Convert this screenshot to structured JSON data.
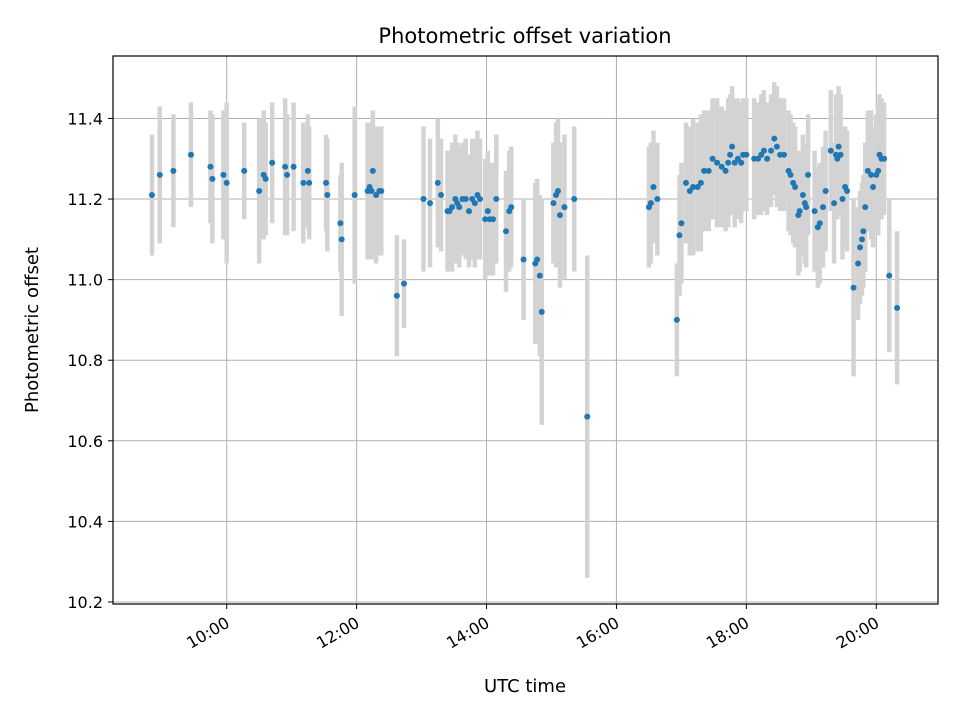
{
  "chart_data": {
    "type": "scatter",
    "title": "Photometric offset variation",
    "xlabel": "UTC time",
    "ylabel": "Photometric offset",
    "x_unit": "hours UTC",
    "xlim": [
      8.25,
      20.95
    ],
    "ylim": [
      10.195,
      11.555
    ],
    "xticks": [
      {
        "value": 10,
        "label": "10:00"
      },
      {
        "value": 12,
        "label": "12:00"
      },
      {
        "value": 14,
        "label": "14:00"
      },
      {
        "value": 16,
        "label": "16:00"
      },
      {
        "value": 18,
        "label": "18:00"
      },
      {
        "value": 20,
        "label": "20:00"
      }
    ],
    "yticks": [
      {
        "value": 10.2,
        "label": "10.2"
      },
      {
        "value": 10.4,
        "label": "10.4"
      },
      {
        "value": 10.6,
        "label": "10.6"
      },
      {
        "value": 10.8,
        "label": "10.8"
      },
      {
        "value": 11.0,
        "label": "11.0"
      },
      {
        "value": 11.2,
        "label": "11.2"
      },
      {
        "value": 11.4,
        "label": "11.4"
      }
    ],
    "grid": true,
    "colors": {
      "marker": "#1f77b4",
      "errorbar": "#d3d3d3",
      "grid": "#b0b0b0"
    },
    "series": [
      {
        "values": [
          [
            8.85,
            11.21,
            0.15
          ],
          [
            8.97,
            11.26,
            0.17
          ],
          [
            9.18,
            11.27,
            0.14
          ],
          [
            9.45,
            11.31,
            0.13
          ],
          [
            9.75,
            11.28,
            0.14
          ],
          [
            9.78,
            11.25,
            0.16
          ],
          [
            9.95,
            11.26,
            0.16
          ],
          [
            10.0,
            11.24,
            0.2
          ],
          [
            10.27,
            11.27,
            0.12
          ],
          [
            10.5,
            11.22,
            0.18
          ],
          [
            10.57,
            11.26,
            0.16
          ],
          [
            10.6,
            11.25,
            0.14
          ],
          [
            10.7,
            11.29,
            0.15
          ],
          [
            10.9,
            11.28,
            0.17
          ],
          [
            10.93,
            11.26,
            0.15
          ],
          [
            11.03,
            11.28,
            0.16
          ],
          [
            11.18,
            11.24,
            0.15
          ],
          [
            11.25,
            11.27,
            0.14
          ],
          [
            11.27,
            11.24,
            0.14
          ],
          [
            11.53,
            11.24,
            0.12
          ],
          [
            11.55,
            11.21,
            0.14
          ],
          [
            11.75,
            11.14,
            0.12
          ],
          [
            11.77,
            11.1,
            0.19
          ],
          [
            11.97,
            11.21,
            0.22
          ],
          [
            12.17,
            11.22,
            0.17
          ],
          [
            12.2,
            11.23,
            0.15
          ],
          [
            12.23,
            11.22,
            0.17
          ],
          [
            12.25,
            11.27,
            0.15
          ],
          [
            12.3,
            11.21,
            0.17
          ],
          [
            12.35,
            11.22,
            0.16
          ],
          [
            12.38,
            11.22,
            0.16
          ],
          [
            12.62,
            10.96,
            0.15
          ],
          [
            12.73,
            10.99,
            0.11
          ],
          [
            13.03,
            11.2,
            0.18
          ],
          [
            13.13,
            11.19,
            0.16
          ],
          [
            13.25,
            11.24,
            0.16
          ],
          [
            13.3,
            11.21,
            0.14
          ],
          [
            13.4,
            11.17,
            0.15
          ],
          [
            13.43,
            11.17,
            0.15
          ],
          [
            13.47,
            11.18,
            0.16
          ],
          [
            13.52,
            11.2,
            0.16
          ],
          [
            13.55,
            11.19,
            0.15
          ],
          [
            13.58,
            11.18,
            0.15
          ],
          [
            13.63,
            11.2,
            0.14
          ],
          [
            13.68,
            11.2,
            0.15
          ],
          [
            13.73,
            11.17,
            0.14
          ],
          [
            13.78,
            11.2,
            0.15
          ],
          [
            13.82,
            11.19,
            0.16
          ],
          [
            13.86,
            11.21,
            0.16
          ],
          [
            13.9,
            11.2,
            0.15
          ],
          [
            13.98,
            11.15,
            0.15
          ],
          [
            14.02,
            11.17,
            0.15
          ],
          [
            14.05,
            11.15,
            0.14
          ],
          [
            14.1,
            11.15,
            0.14
          ],
          [
            14.15,
            11.2,
            0.16
          ],
          [
            14.3,
            11.12,
            0.15
          ],
          [
            14.35,
            11.17,
            0.15
          ],
          [
            14.38,
            11.18,
            0.15
          ],
          [
            14.57,
            11.05,
            0.15
          ],
          [
            14.75,
            11.04,
            0.2
          ],
          [
            14.78,
            11.05,
            0.2
          ],
          [
            14.82,
            11.01,
            0.2
          ],
          [
            14.85,
            10.92,
            0.28
          ],
          [
            15.03,
            11.19,
            0.15
          ],
          [
            15.07,
            11.21,
            0.18
          ],
          [
            15.1,
            11.22,
            0.18
          ],
          [
            15.13,
            11.16,
            0.18
          ],
          [
            15.2,
            11.18,
            0.18
          ],
          [
            15.35,
            11.2,
            0.18
          ],
          [
            15.55,
            10.66,
            0.4
          ],
          [
            16.5,
            11.18,
            0.15
          ],
          [
            16.53,
            11.19,
            0.15
          ],
          [
            16.57,
            11.23,
            0.14
          ],
          [
            16.63,
            11.2,
            0.14
          ],
          [
            16.93,
            10.9,
            0.14
          ],
          [
            16.97,
            11.11,
            0.15
          ],
          [
            17.0,
            11.14,
            0.15
          ],
          [
            17.07,
            11.24,
            0.15
          ],
          [
            17.13,
            11.22,
            0.16
          ],
          [
            17.18,
            11.23,
            0.17
          ],
          [
            17.25,
            11.23,
            0.16
          ],
          [
            17.3,
            11.24,
            0.17
          ],
          [
            17.35,
            11.27,
            0.15
          ],
          [
            17.42,
            11.27,
            0.15
          ],
          [
            17.48,
            11.3,
            0.15
          ],
          [
            17.55,
            11.29,
            0.16
          ],
          [
            17.62,
            11.28,
            0.15
          ],
          [
            17.68,
            11.27,
            0.15
          ],
          [
            17.72,
            11.29,
            0.16
          ],
          [
            17.75,
            11.31,
            0.15
          ],
          [
            17.78,
            11.33,
            0.15
          ],
          [
            17.82,
            11.29,
            0.16
          ],
          [
            17.87,
            11.3,
            0.15
          ],
          [
            17.92,
            11.29,
            0.15
          ],
          [
            17.95,
            11.31,
            0.14
          ],
          [
            18.0,
            11.31,
            0.14
          ],
          [
            18.12,
            11.3,
            0.15
          ],
          [
            18.18,
            11.3,
            0.14
          ],
          [
            18.23,
            11.31,
            0.15
          ],
          [
            18.27,
            11.32,
            0.15
          ],
          [
            18.32,
            11.3,
            0.14
          ],
          [
            18.38,
            11.32,
            0.14
          ],
          [
            18.43,
            11.35,
            0.14
          ],
          [
            18.47,
            11.33,
            0.15
          ],
          [
            18.52,
            11.31,
            0.14
          ],
          [
            18.58,
            11.31,
            0.14
          ],
          [
            18.65,
            11.27,
            0.15
          ],
          [
            18.68,
            11.26,
            0.15
          ],
          [
            18.72,
            11.24,
            0.15
          ],
          [
            18.75,
            11.23,
            0.15
          ],
          [
            18.8,
            11.16,
            0.15
          ],
          [
            18.82,
            11.17,
            0.15
          ],
          [
            18.87,
            11.21,
            0.15
          ],
          [
            18.9,
            11.19,
            0.15
          ],
          [
            18.92,
            11.18,
            0.15
          ],
          [
            18.95,
            11.26,
            0.15
          ],
          [
            19.05,
            11.17,
            0.15
          ],
          [
            19.1,
            11.13,
            0.15
          ],
          [
            19.13,
            11.14,
            0.15
          ],
          [
            19.18,
            11.18,
            0.15
          ],
          [
            19.22,
            11.22,
            0.15
          ],
          [
            19.3,
            11.32,
            0.15
          ],
          [
            19.35,
            11.19,
            0.15
          ],
          [
            19.38,
            11.31,
            0.15
          ],
          [
            19.4,
            11.3,
            0.15
          ],
          [
            19.42,
            11.33,
            0.15
          ],
          [
            19.45,
            11.31,
            0.15
          ],
          [
            19.48,
            11.2,
            0.15
          ],
          [
            19.52,
            11.23,
            0.15
          ],
          [
            19.55,
            11.22,
            0.15
          ],
          [
            19.65,
            10.98,
            0.22
          ],
          [
            19.72,
            11.04,
            0.14
          ],
          [
            19.75,
            11.08,
            0.14
          ],
          [
            19.78,
            11.1,
            0.14
          ],
          [
            19.8,
            11.12,
            0.14
          ],
          [
            19.83,
            11.18,
            0.16
          ],
          [
            19.87,
            11.27,
            0.15
          ],
          [
            19.92,
            11.26,
            0.16
          ],
          [
            19.95,
            11.23,
            0.15
          ],
          [
            20.0,
            11.26,
            0.15
          ],
          [
            20.03,
            11.27,
            0.16
          ],
          [
            20.05,
            11.31,
            0.15
          ],
          [
            20.08,
            11.3,
            0.15
          ],
          [
            20.12,
            11.3,
            0.14
          ],
          [
            20.2,
            11.01,
            0.19
          ],
          [
            20.32,
            10.93,
            0.19
          ]
        ]
      }
    ]
  }
}
